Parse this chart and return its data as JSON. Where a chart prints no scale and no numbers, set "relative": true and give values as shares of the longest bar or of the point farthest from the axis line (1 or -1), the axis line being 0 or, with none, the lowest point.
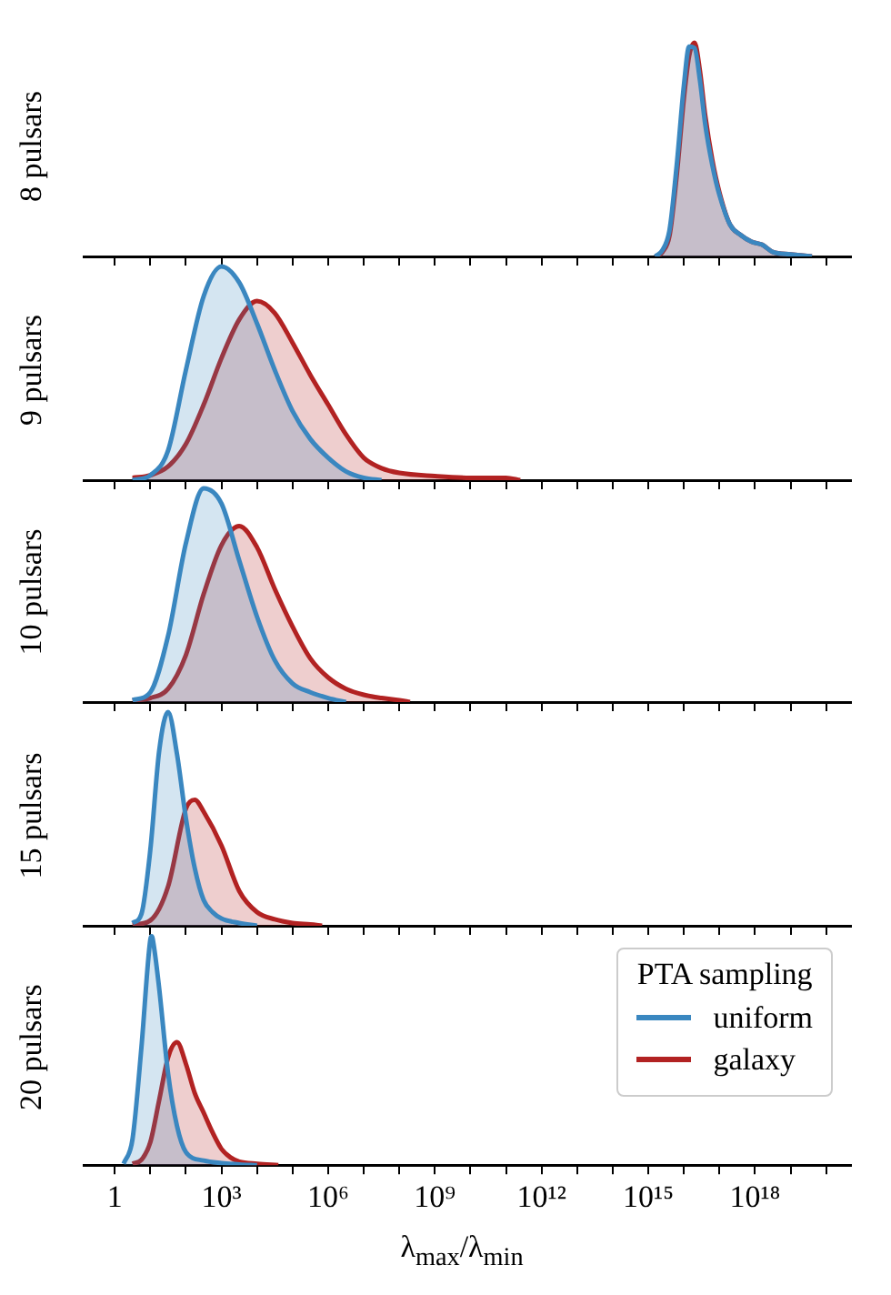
{
  "chart_data": [
    {
      "type": "area",
      "relative": true,
      "log": "x",
      "ylabel": "8 pulsars",
      "xlim": [
        0.14,
        5e+20
      ],
      "tick_labels": false,
      "xticks": [
        {
          "value": 1,
          "label": null
        },
        {
          "value": 10,
          "label": null
        },
        {
          "value": 100,
          "label": null
        },
        {
          "value": 1000,
          "label": null
        },
        {
          "value": 10000.0,
          "label": null
        },
        {
          "value": 100000.0,
          "label": null
        },
        {
          "value": 1000000.0,
          "label": null
        },
        {
          "value": 10000000.0,
          "label": null
        },
        {
          "value": 100000000.0,
          "label": null
        },
        {
          "value": 1000000000.0,
          "label": null
        },
        {
          "value": 10000000000.0,
          "label": null
        },
        {
          "value": 100000000000.0,
          "label": null
        },
        {
          "value": 1000000000000.0,
          "label": null
        },
        {
          "value": 10000000000000.0,
          "label": null
        },
        {
          "value": 100000000000000.0,
          "label": null
        },
        {
          "value": 1000000000000000.0,
          "label": null
        },
        {
          "value": 1e+16,
          "label": null
        },
        {
          "value": 1e+17,
          "label": null
        },
        {
          "value": 1e+18,
          "label": null
        },
        {
          "value": 1e+19,
          "label": null
        },
        {
          "value": 1e+20,
          "label": null
        }
      ],
      "series": [
        {
          "color": "#3a87c0",
          "x": [
            1580000000000000.0,
            2510000000000000.0,
            3980000000000000.0,
            6310000000000000.0,
            1e+16,
            1.41e+16,
            2e+16,
            2.82e+16,
            3.98e+16,
            6.31e+16,
            1e+17,
            2e+17,
            3.98e+17,
            7.94e+17,
            1.58e+18,
            3.16e+18,
            1e+19,
            3.98e+19
          ],
          "values": [
            0,
            0.03,
            0.126,
            0.428,
            0.798,
            0.982,
            0.975,
            0.827,
            0.62,
            0.428,
            0.288,
            0.148,
            0.1,
            0.069,
            0.055,
            0.021,
            0.01,
            0
          ]
        },
        {
          "color": "#b22222",
          "x": [
            1580000000000000.0,
            2510000000000000.0,
            3980000000000000.0,
            6310000000000000.0,
            1e+16,
            1.41e+16,
            2e+16,
            2.82e+16,
            3.98e+16,
            6.31e+16,
            1e+17,
            2e+17,
            3.98e+17,
            7.94e+17,
            1.58e+18,
            3.16e+18,
            1e+19,
            3.98e+19
          ],
          "values": [
            0,
            0.021,
            0.1,
            0.38,
            0.739,
            0.939,
            1,
            0.87,
            0.66,
            0.451,
            0.3,
            0.148,
            0.1,
            0.069,
            0.055,
            0.021,
            0.01,
            0
          ]
        }
      ]
    },
    {
      "type": "area",
      "relative": true,
      "log": "x",
      "ylabel": "9 pulsars",
      "xlim": [
        0.14,
        5e+20
      ],
      "tick_labels": false,
      "xticks": [
        {
          "value": 1,
          "label": null
        },
        {
          "value": 10,
          "label": null
        },
        {
          "value": 100,
          "label": null
        },
        {
          "value": 1000,
          "label": null
        },
        {
          "value": 10000.0,
          "label": null
        },
        {
          "value": 100000.0,
          "label": null
        },
        {
          "value": 1000000.0,
          "label": null
        },
        {
          "value": 10000000.0,
          "label": null
        },
        {
          "value": 100000000.0,
          "label": null
        },
        {
          "value": 1000000000.0,
          "label": null
        },
        {
          "value": 10000000000.0,
          "label": null
        },
        {
          "value": 100000000000.0,
          "label": null
        },
        {
          "value": 1000000000000.0,
          "label": null
        },
        {
          "value": 10000000000000.0,
          "label": null
        },
        {
          "value": 100000000000000.0,
          "label": null
        },
        {
          "value": 1000000000000000.0,
          "label": null
        },
        {
          "value": 1e+16,
          "label": null
        },
        {
          "value": 1e+17,
          "label": null
        },
        {
          "value": 1e+18,
          "label": null
        },
        {
          "value": 1e+19,
          "label": null
        },
        {
          "value": 1e+20,
          "label": null
        }
      ],
      "series": [
        {
          "color": "#3a87c0",
          "x": [
            3.16,
            10,
            31.6,
            100,
            316,
            1000,
            3160,
            10000.0,
            31600.0,
            100000.0,
            316000.0,
            1000000.0,
            3160000.0,
            10000000.0,
            31600000.0
          ],
          "values": [
            0,
            0.023,
            0.139,
            0.515,
            0.861,
            1,
            0.925,
            0.733,
            0.515,
            0.323,
            0.192,
            0.105,
            0.041,
            0.011,
            0
          ]
        },
        {
          "color": "#b22222",
          "x": [
            3.16,
            10,
            31.6,
            100,
            316,
            1000,
            3160,
            10000.0,
            31600.0,
            100000.0,
            316000.0,
            1000000.0,
            3160000.0,
            10000000.0,
            31600000.0,
            100000000.0,
            1000000000.0,
            10000000000.0,
            100000000000.0,
            251000000000.0
          ],
          "values": [
            0.011,
            0.023,
            0.064,
            0.169,
            0.353,
            0.571,
            0.752,
            0.838,
            0.782,
            0.643,
            0.492,
            0.353,
            0.214,
            0.105,
            0.056,
            0.034,
            0.019,
            0.011,
            0.011,
            0
          ]
        }
      ]
    },
    {
      "type": "area",
      "relative": true,
      "log": "x",
      "ylabel": "10 pulsars",
      "xlim": [
        0.14,
        5e+20
      ],
      "tick_labels": false,
      "xticks": [
        {
          "value": 1,
          "label": null
        },
        {
          "value": 10,
          "label": null
        },
        {
          "value": 100,
          "label": null
        },
        {
          "value": 1000,
          "label": null
        },
        {
          "value": 10000.0,
          "label": null
        },
        {
          "value": 100000.0,
          "label": null
        },
        {
          "value": 1000000.0,
          "label": null
        },
        {
          "value": 10000000.0,
          "label": null
        },
        {
          "value": 100000000.0,
          "label": null
        },
        {
          "value": 1000000000.0,
          "label": null
        },
        {
          "value": 10000000000.0,
          "label": null
        },
        {
          "value": 100000000000.0,
          "label": null
        },
        {
          "value": 1000000000000.0,
          "label": null
        },
        {
          "value": 10000000000000.0,
          "label": null
        },
        {
          "value": 100000000000000.0,
          "label": null
        },
        {
          "value": 1000000000000000.0,
          "label": null
        },
        {
          "value": 1e+16,
          "label": null
        },
        {
          "value": 1e+17,
          "label": null
        },
        {
          "value": 1e+18,
          "label": null
        },
        {
          "value": 1e+19,
          "label": null
        },
        {
          "value": 1e+20,
          "label": null
        }
      ],
      "series": [
        {
          "color": "#3a87c0",
          "x": [
            3.16,
            10,
            31.6,
            100,
            316,
            1000,
            3160,
            10000.0,
            31600.0,
            100000.0,
            316000.0,
            1000000.0,
            3160000.0
          ],
          "values": [
            0.009,
            0.046,
            0.31,
            0.743,
            1,
            0.929,
            0.663,
            0.399,
            0.195,
            0.087,
            0.046,
            0.019,
            0
          ]
        },
        {
          "color": "#b22222",
          "x": [
            3.16,
            10,
            31.6,
            100,
            316,
            1000,
            3160,
            10000.0,
            31600.0,
            100000.0,
            316000.0,
            1000000.0,
            3160000.0,
            10000000.0,
            31600000.0,
            100000000.0,
            200000000.0
          ],
          "values": [
            0.009,
            0.019,
            0.062,
            0.22,
            0.505,
            0.734,
            0.824,
            0.724,
            0.529,
            0.353,
            0.204,
            0.115,
            0.062,
            0.034,
            0.019,
            0.009,
            0
          ]
        }
      ]
    },
    {
      "type": "area",
      "relative": true,
      "log": "x",
      "ylabel": "15 pulsars",
      "xlim": [
        0.14,
        5e+20
      ],
      "tick_labels": false,
      "xticks": [
        {
          "value": 1,
          "label": null
        },
        {
          "value": 10,
          "label": null
        },
        {
          "value": 100,
          "label": null
        },
        {
          "value": 1000,
          "label": null
        },
        {
          "value": 10000.0,
          "label": null
        },
        {
          "value": 100000.0,
          "label": null
        },
        {
          "value": 1000000.0,
          "label": null
        },
        {
          "value": 10000000.0,
          "label": null
        },
        {
          "value": 100000000.0,
          "label": null
        },
        {
          "value": 1000000000.0,
          "label": null
        },
        {
          "value": 10000000000.0,
          "label": null
        },
        {
          "value": 100000000000.0,
          "label": null
        },
        {
          "value": 1000000000000.0,
          "label": null
        },
        {
          "value": 10000000000000.0,
          "label": null
        },
        {
          "value": 100000000000000.0,
          "label": null
        },
        {
          "value": 1000000000000000.0,
          "label": null
        },
        {
          "value": 1e+16,
          "label": null
        },
        {
          "value": 1e+17,
          "label": null
        },
        {
          "value": 1e+18,
          "label": null
        },
        {
          "value": 1e+19,
          "label": null
        },
        {
          "value": 1e+20,
          "label": null
        }
      ],
      "series": [
        {
          "color": "#3a87c0",
          "x": [
            3.16,
            5.62,
            10,
            17.8,
            31.6,
            56.2,
            100,
            178,
            316,
            562,
            1000,
            3160,
            10000.0
          ],
          "values": [
            0.013,
            0.055,
            0.355,
            0.82,
            1,
            0.804,
            0.504,
            0.269,
            0.12,
            0.064,
            0.034,
            0.013,
            0
          ]
        },
        {
          "color": "#b22222",
          "x": [
            3.16,
            10,
            31.6,
            100,
            178,
            316,
            1000,
            3160,
            10000.0,
            31600.0,
            100000.0,
            316000.0,
            676000.0
          ],
          "values": [
            0.004,
            0.025,
            0.184,
            0.548,
            0.59,
            0.534,
            0.376,
            0.163,
            0.064,
            0.03,
            0.013,
            0.006,
            0
          ]
        }
      ]
    },
    {
      "type": "area",
      "relative": true,
      "log": "x",
      "ylabel": "20 pulsars",
      "xlabel": "λ$_{max}$/λ$_{min}$",
      "xlim": [
        0.14,
        5e+20
      ],
      "legend": "right",
      "legend_title": "PTA sampling",
      "xticks": [
        {
          "value": 1,
          "label": "1"
        },
        {
          "value": 10,
          "label": null
        },
        {
          "value": 100,
          "label": null
        },
        {
          "value": 1000,
          "label": "10³"
        },
        {
          "value": 10000.0,
          "label": null
        },
        {
          "value": 100000.0,
          "label": null
        },
        {
          "value": 1000000.0,
          "label": "10⁶"
        },
        {
          "value": 10000000.0,
          "label": null
        },
        {
          "value": 100000000.0,
          "label": null
        },
        {
          "value": 1000000000.0,
          "label": "10⁹"
        },
        {
          "value": 10000000000.0,
          "label": null
        },
        {
          "value": 100000000000.0,
          "label": null
        },
        {
          "value": 1000000000000.0,
          "label": "10¹²"
        },
        {
          "value": 10000000000000.0,
          "label": null
        },
        {
          "value": 100000000000000.0,
          "label": null
        },
        {
          "value": 1000000000000000.0,
          "label": "10¹⁵"
        },
        {
          "value": 1e+16,
          "label": null
        },
        {
          "value": 1e+17,
          "label": null
        },
        {
          "value": 1e+18,
          "label": "10¹⁸"
        },
        {
          "value": 1e+19,
          "label": null
        },
        {
          "value": 1e+20,
          "label": null
        }
      ],
      "series": [
        {
          "name": "uniform",
          "color": "#3a87c0",
          "x": [
            1.78,
            3.16,
            5.62,
            10,
            11,
            12.6,
            17.8,
            31.6,
            56.2,
            100,
            316,
            1000,
            3160,
            10000.0
          ],
          "values": [
            0.006,
            0.114,
            0.514,
            0.985,
            1,
            0.957,
            0.771,
            0.4,
            0.171,
            0.057,
            0.02,
            0.009,
            0.003,
            0
          ]
        },
        {
          "name": "galaxy",
          "color": "#b22222",
          "x": [
            3.16,
            5.62,
            10,
            17.8,
            31.6,
            56.2,
            100,
            178,
            316,
            562,
            1000,
            1780,
            3160,
            10000.0,
            39800.0
          ],
          "values": [
            0.006,
            0.023,
            0.1,
            0.285,
            0.471,
            0.537,
            0.443,
            0.314,
            0.229,
            0.143,
            0.071,
            0.034,
            0.015,
            0.006,
            0
          ]
        }
      ]
    }
  ]
}
